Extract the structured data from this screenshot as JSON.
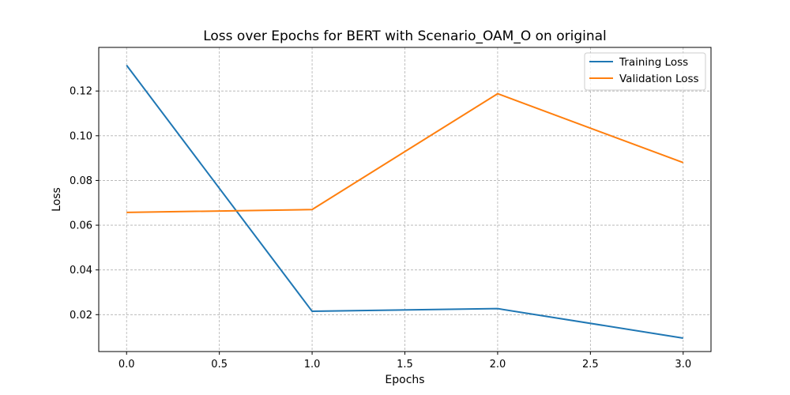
{
  "chart_data": {
    "type": "line",
    "title": "Loss over Epochs for BERT with Scenario_OAM_O on original",
    "xlabel": "Epochs",
    "ylabel": "Loss",
    "x": [
      0,
      1,
      2,
      3
    ],
    "xlim": [
      -0.15,
      3.15
    ],
    "ylim": [
      0.0035,
      0.1395
    ],
    "xticks": [
      0.0,
      0.5,
      1.0,
      1.5,
      2.0,
      2.5,
      3.0
    ],
    "xtick_labels": [
      "0.0",
      "0.5",
      "1.0",
      "1.5",
      "2.0",
      "2.5",
      "3.0"
    ],
    "yticks": [
      0.02,
      0.04,
      0.06,
      0.08,
      0.1,
      0.12
    ],
    "ytick_labels": [
      "0.02",
      "0.04",
      "0.06",
      "0.08",
      "0.10",
      "0.12"
    ],
    "grid": true,
    "legend_position": "top-right",
    "series": [
      {
        "name": "Training Loss",
        "color": "#1f77b4",
        "values": [
          0.1315,
          0.0215,
          0.0227,
          0.0095
        ]
      },
      {
        "name": "Validation Loss",
        "color": "#ff7f0e",
        "values": [
          0.0657,
          0.067,
          0.1188,
          0.088
        ]
      }
    ]
  }
}
